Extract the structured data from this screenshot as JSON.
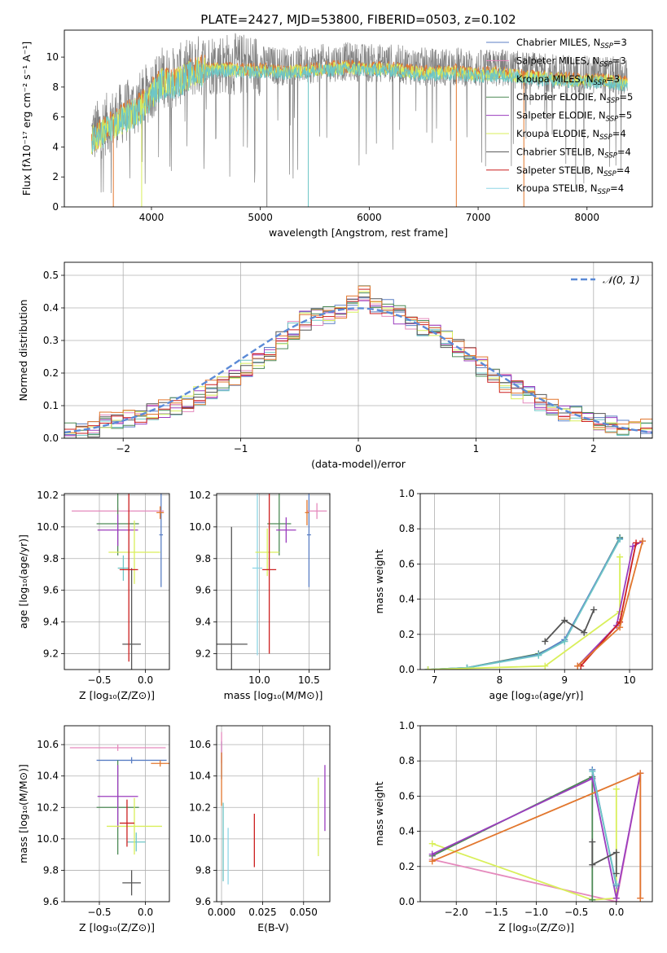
{
  "figure_title": "PLATE=2427, MJD=53800, FIBERID=0503, z=0.102",
  "colors": {
    "chabrier_miles": "#5b7fc4",
    "salpeter_miles": "#e58abd",
    "kroupa_miles": "#6ec6c6",
    "chabrier_elodie": "#4d8a56",
    "salpeter_elodie": "#9b3dbe",
    "kroupa_elodie": "#d9ef5a",
    "chabrier_stelib": "#555555",
    "salpeter_stelib": "#cc1f1f",
    "kroupa_stelib": "#8fd6e6",
    "data": "#808080",
    "model_orange": "#e2772e",
    "gauss": "#5b8ad6",
    "grid": "#b0b0b0"
  },
  "chart_data": [
    {
      "id": "spectrum",
      "type": "line",
      "title": "PLATE=2427, MJD=53800, FIBERID=0503, z=0.102",
      "xlabel": "wavelength [Angstrom, rest frame]",
      "ylabel": "Flux [fλ10⁻¹⁷ erg cm⁻² s⁻¹ A⁻¹]",
      "xlim": [
        3200,
        8600
      ],
      "ylim": [
        0,
        11.8
      ],
      "xticks": [
        4000,
        5000,
        6000,
        7000,
        8000
      ],
      "yticks": [
        0,
        2,
        4,
        6,
        8,
        10
      ],
      "grid": false,
      "legend": "upper right",
      "continuum": {
        "x": [
          3450,
          3600,
          3700,
          3800,
          3900,
          4000,
          4100,
          4200,
          4300,
          4400,
          4600,
          4800,
          5000,
          5200,
          5400,
          5600,
          5800,
          6000,
          6200,
          6400,
          6600,
          6800,
          7000,
          7200,
          7400,
          7600,
          7800,
          8000,
          8200,
          8370
        ],
        "y": [
          4.8,
          5.6,
          6.1,
          6.5,
          7.0,
          7.9,
          8.7,
          8.6,
          9.0,
          9.4,
          9.6,
          9.5,
          9.5,
          9.4,
          9.5,
          9.6,
          9.7,
          9.6,
          9.6,
          9.4,
          9.3,
          9.4,
          9.2,
          9.3,
          9.1,
          9.0,
          8.9,
          8.8,
          8.8,
          8.6
        ]
      },
      "series": [
        {
          "name": "Chabrier MILES, N_SSP=3",
          "color": "#5b7fc4"
        },
        {
          "name": "Salpeter MILES, N_SSP=3",
          "color": "#e58abd"
        },
        {
          "name": "Kroupa MILES, N_SSP=3",
          "color": "#6ec6c6"
        },
        {
          "name": "Chabrier ELODIE, N_SSP=5",
          "color": "#4d8a56"
        },
        {
          "name": "Salpeter ELODIE, N_SSP=5",
          "color": "#9b3dbe"
        },
        {
          "name": "Kroupa ELODIE, N_SSP=4",
          "color": "#d9ef5a"
        },
        {
          "name": "Chabrier STELIB, N_SSP=4",
          "color": "#555555"
        },
        {
          "name": "Salpeter STELIB, N_SSP=4",
          "color": "#cc1f1f"
        },
        {
          "name": "Kroupa STELIB, N_SSP=4",
          "color": "#8fd6e6"
        }
      ],
      "drops": [
        3650,
        3910,
        5060,
        5440,
        6800,
        7420
      ]
    },
    {
      "id": "residual_hist",
      "type": "bar",
      "xlabel": "(data-model)/error",
      "ylabel": "Normed distribution",
      "xlim": [
        -2.5,
        2.5
      ],
      "ylim": [
        0,
        0.54
      ],
      "xticks": [
        -2,
        -1,
        0,
        1,
        2
      ],
      "yticks": [
        0.0,
        0.1,
        0.2,
        0.3,
        0.4,
        0.5
      ],
      "grid": true,
      "legend": "upper right",
      "legend_label": "𝒩(0, 1)",
      "bin_edges_start": -2.5,
      "bin_width": 0.1,
      "hist_values": [
        0.02,
        0.02,
        0.03,
        0.05,
        0.05,
        0.06,
        0.07,
        0.08,
        0.09,
        0.1,
        0.11,
        0.13,
        0.15,
        0.17,
        0.19,
        0.21,
        0.24,
        0.26,
        0.3,
        0.33,
        0.36,
        0.37,
        0.38,
        0.38,
        0.41,
        0.44,
        0.41,
        0.4,
        0.38,
        0.36,
        0.34,
        0.32,
        0.3,
        0.28,
        0.25,
        0.22,
        0.19,
        0.17,
        0.15,
        0.13,
        0.11,
        0.09,
        0.08,
        0.07,
        0.06,
        0.05,
        0.04,
        0.03,
        0.03,
        0.03
      ]
    },
    {
      "id": "age_vs_Z",
      "type": "scatter",
      "xlabel": "Z [log₁₀(Z/Z⊙)]",
      "ylabel": "age  [log₁₀(age/yr)]",
      "xlim": [
        -0.88,
        0.26
      ],
      "ylim": [
        9.1,
        10.21
      ],
      "xticks": [
        -0.5,
        0.0
      ],
      "xtick_labels": [
        "−0.5",
        "0.0"
      ],
      "yticks": [
        9.2,
        9.4,
        9.6,
        9.8,
        10.0,
        10.2
      ],
      "grid": true,
      "points": [
        {
          "x": 0.17,
          "y": 9.95,
          "xerr": 0.02,
          "yerr": 0.33,
          "color": "#5b7fc4"
        },
        {
          "x": -0.3,
          "y": 10.1,
          "xerr": 0.5,
          "yerr": 0.02,
          "color": "#e58abd"
        },
        {
          "x": -0.24,
          "y": 9.74,
          "xerr": 0.06,
          "yerr": 0.08,
          "color": "#6ec6c6"
        },
        {
          "x": -0.3,
          "y": 10.02,
          "xerr": 0.23,
          "yerr": 0.2,
          "color": "#4d8a56"
        },
        {
          "x": -0.3,
          "y": 9.98,
          "xerr": 0.22,
          "yerr": 0.1,
          "color": "#9b3dbe"
        },
        {
          "x": -0.12,
          "y": 9.84,
          "xerr": 0.28,
          "yerr": 0.2,
          "color": "#d9ef5a"
        },
        {
          "x": -0.15,
          "y": 9.26,
          "xerr": 0.1,
          "yerr": 0.48,
          "color": "#555555"
        },
        {
          "x": -0.18,
          "y": 9.73,
          "xerr": 0.1,
          "yerr": 0.58,
          "color": "#cc1f1f"
        },
        {
          "x": 0.16,
          "y": 10.09,
          "xerr": 0.04,
          "yerr": 0.04,
          "color": "#e2772e"
        }
      ]
    },
    {
      "id": "age_vs_mass",
      "type": "scatter",
      "xlabel": "mass [log₁₀(M/M⊙)]",
      "ylabel": "",
      "xlim": [
        9.57,
        10.71
      ],
      "ylim": [
        9.1,
        10.21
      ],
      "xticks": [
        10.0,
        10.5
      ],
      "yticks": [
        9.2,
        9.4,
        9.6,
        9.8,
        10.0,
        10.2
      ],
      "grid": true,
      "points": [
        {
          "x": 10.5,
          "y": 9.95,
          "xerr": 0.02,
          "yerr": 0.33,
          "color": "#5b7fc4"
        },
        {
          "x": 10.58,
          "y": 10.1,
          "xerr": 0.1,
          "yerr": 0.05,
          "color": "#e58abd"
        },
        {
          "x": 9.98,
          "y": 9.74,
          "xerr": 0.05,
          "yerr": 0.55,
          "color": "#8fd6e6"
        },
        {
          "x": 10.2,
          "y": 10.02,
          "xerr": 0.12,
          "yerr": 0.2,
          "color": "#4d8a56"
        },
        {
          "x": 10.27,
          "y": 9.98,
          "xerr": 0.1,
          "yerr": 0.08,
          "color": "#9b3dbe"
        },
        {
          "x": 10.08,
          "y": 9.84,
          "xerr": 0.12,
          "yerr": 0.15,
          "color": "#d9ef5a"
        },
        {
          "x": 9.72,
          "y": 9.26,
          "xerr": 0.16,
          "yerr": 0.74,
          "color": "#555555"
        },
        {
          "x": 10.1,
          "y": 9.73,
          "xerr": 0.07,
          "yerr": 0.53,
          "color": "#cc1f1f"
        },
        {
          "x": 10.48,
          "y": 10.09,
          "xerr": 0.02,
          "yerr": 0.08,
          "color": "#e2772e"
        }
      ]
    },
    {
      "id": "weight_vs_age",
      "type": "line",
      "xlabel": "age  [log₁₀(age/yr)]",
      "ylabel": "mass weight",
      "xlim": [
        6.78,
        10.35
      ],
      "ylim": [
        0.0,
        1.0
      ],
      "xticks": [
        7,
        8,
        9,
        10
      ],
      "yticks": [
        0.0,
        0.2,
        0.4,
        0.6,
        0.8,
        1.0
      ],
      "grid": true,
      "series": [
        {
          "color": "#4d8a56",
          "x": [
            6.9,
            7.5,
            8.6,
            9.0,
            9.85
          ],
          "y": [
            0.0,
            0.01,
            0.09,
            0.16,
            0.75
          ]
        },
        {
          "color": "#5b7fc4",
          "x": [
            6.9,
            7.5,
            8.6,
            9.0,
            9.85
          ],
          "y": [
            0.0,
            0.01,
            0.085,
            0.17,
            0.745
          ]
        },
        {
          "color": "#6ec6c6",
          "x": [
            6.9,
            7.5,
            8.6,
            9.0,
            9.85
          ],
          "y": [
            0.0,
            0.01,
            0.08,
            0.16,
            0.74
          ]
        },
        {
          "color": "#d9ef5a",
          "x": [
            6.9,
            8.7,
            9.85,
            9.85
          ],
          "y": [
            0.0,
            0.02,
            0.33,
            0.64
          ]
        },
        {
          "color": "#555555",
          "x": [
            8.7,
            9.0,
            9.3,
            9.45
          ],
          "y": [
            0.16,
            0.28,
            0.21,
            0.34
          ]
        },
        {
          "color": "#9b3dbe",
          "x": [
            9.2,
            9.8,
            10.05,
            10.2
          ],
          "y": [
            0.02,
            0.25,
            0.7,
            0.73
          ]
        },
        {
          "color": "#cc1f1f",
          "x": [
            9.25,
            9.85,
            10.1
          ],
          "y": [
            0.02,
            0.27,
            0.72
          ]
        },
        {
          "color": "#e2772e",
          "x": [
            9.2,
            9.85,
            10.2
          ],
          "y": [
            0.02,
            0.24,
            0.73
          ]
        }
      ]
    },
    {
      "id": "mass_vs_Z",
      "type": "scatter",
      "xlabel": "Z [log₁₀(Z/Z⊙)]",
      "ylabel": "mass [log₁₀(M/M⊙)]",
      "xlim": [
        -0.88,
        0.26
      ],
      "ylim": [
        9.6,
        10.72
      ],
      "xticks": [
        -0.5,
        0.0
      ],
      "xtick_labels": [
        "−0.5",
        "0.0"
      ],
      "yticks": [
        9.6,
        9.8,
        10.0,
        10.2,
        10.4,
        10.6
      ],
      "grid": true,
      "points": [
        {
          "x": -0.15,
          "y": 10.5,
          "xerr": 0.38,
          "yerr": 0.02,
          "color": "#5b7fc4"
        },
        {
          "x": -0.3,
          "y": 10.58,
          "xerr": 0.52,
          "yerr": 0.02,
          "color": "#e58abd"
        },
        {
          "x": -0.1,
          "y": 9.98,
          "xerr": 0.1,
          "yerr": 0.06,
          "color": "#6ec6c6"
        },
        {
          "x": -0.3,
          "y": 10.2,
          "xerr": 0.23,
          "yerr": 0.3,
          "color": "#4d8a56"
        },
        {
          "x": -0.3,
          "y": 10.27,
          "xerr": 0.22,
          "yerr": 0.2,
          "color": "#9b3dbe"
        },
        {
          "x": -0.12,
          "y": 10.08,
          "xerr": 0.3,
          "yerr": 0.18,
          "color": "#d9ef5a"
        },
        {
          "x": -0.15,
          "y": 9.72,
          "xerr": 0.1,
          "yerr": 0.08,
          "color": "#555555"
        },
        {
          "x": -0.2,
          "y": 10.1,
          "xerr": 0.08,
          "yerr": 0.15,
          "color": "#cc1f1f"
        },
        {
          "x": 0.16,
          "y": 10.48,
          "xerr": 0.1,
          "yerr": 0.02,
          "color": "#e2772e"
        }
      ]
    },
    {
      "id": "mass_vs_ebv",
      "type": "scatter",
      "xlabel": "E(B-V)",
      "ylabel": "",
      "xlim": [
        -0.003,
        0.066
      ],
      "ylim": [
        9.6,
        10.72
      ],
      "xticks": [
        0.0,
        0.025,
        0.05
      ],
      "xtick_labels": [
        "0.000",
        "0.025",
        "0.050"
      ],
      "yticks": [
        9.6,
        9.8,
        10.0,
        10.2,
        10.4,
        10.6
      ],
      "grid": true,
      "points": [
        {
          "x": 0.0,
          "y": 10.5,
          "xerr": 0,
          "yerr": 0.12,
          "color": "#5b7fc4"
        },
        {
          "x": 0.0,
          "y": 10.58,
          "xerr": 0,
          "yerr": 0.1,
          "color": "#e58abd"
        },
        {
          "x": 0.001,
          "y": 9.98,
          "xerr": 0,
          "yerr": 0.25,
          "color": "#6ec6c6"
        },
        {
          "x": 0.004,
          "y": 9.89,
          "xerr": 0,
          "yerr": 0.18,
          "color": "#8fd6e6"
        },
        {
          "x": 0.02,
          "y": 9.99,
          "xerr": 0,
          "yerr": 0.17,
          "color": "#cc1f1f"
        },
        {
          "x": 0.059,
          "y": 10.14,
          "xerr": 0,
          "yerr": 0.25,
          "color": "#d9ef5a"
        },
        {
          "x": 0.063,
          "y": 10.26,
          "xerr": 0,
          "yerr": 0.21,
          "color": "#9b3dbe"
        },
        {
          "x": 0.0,
          "y": 10.38,
          "xerr": 0,
          "yerr": 0.17,
          "color": "#e2772e"
        }
      ]
    },
    {
      "id": "weight_vs_Z",
      "type": "line",
      "xlabel": "Z [log₁₀(Z/Z⊙)]",
      "ylabel": "mass weight",
      "xlim": [
        -2.45,
        0.45
      ],
      "ylim": [
        0.0,
        1.0
      ],
      "xticks": [
        -2.0,
        -1.5,
        -1.0,
        -0.5,
        0.0
      ],
      "xtick_labels": [
        "−2.0",
        "−1.5",
        "−1.0",
        "−0.5",
        "0.0"
      ],
      "yticks": [
        0.0,
        0.2,
        0.4,
        0.6,
        0.8,
        1.0
      ],
      "grid": true,
      "series": [
        {
          "color": "#e58abd",
          "x": [
            -2.3,
            -0.0,
            0.3,
            0.3
          ],
          "y": [
            0.24,
            0.0,
            0.73,
            0.02
          ]
        },
        {
          "color": "#d9ef5a",
          "x": [
            -2.3,
            -0.3,
            0.0,
            0.0
          ],
          "y": [
            0.33,
            0.01,
            0.02,
            0.64
          ]
        },
        {
          "color": "#4d8a56",
          "x": [
            -2.3,
            -0.3,
            -0.3
          ],
          "y": [
            0.26,
            0.71,
            0.01
          ]
        },
        {
          "color": "#9b3dbe",
          "x": [
            -2.3,
            -0.3,
            0.0,
            0.3
          ],
          "y": [
            0.27,
            0.7,
            0.02,
            0.73
          ]
        },
        {
          "color": "#e2772e",
          "x": [
            -2.3,
            0.3,
            0.3
          ],
          "y": [
            0.23,
            0.73,
            0.02
          ]
        },
        {
          "color": "#5b7fc4",
          "x": [
            -0.3,
            0.0
          ],
          "y": [
            0.75,
            0.09
          ]
        },
        {
          "color": "#6ec6c6",
          "x": [
            -0.3,
            0.0
          ],
          "y": [
            0.74,
            0.1
          ]
        },
        {
          "color": "#555555",
          "x": [
            -0.3,
            -0.3,
            0.0,
            0.0
          ],
          "y": [
            0.34,
            0.21,
            0.28,
            0.16
          ]
        }
      ]
    }
  ]
}
